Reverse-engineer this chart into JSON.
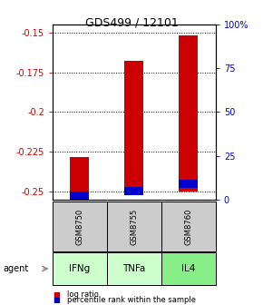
{
  "title": "GDS499 / 12101",
  "samples": [
    "GSM8750",
    "GSM8755",
    "GSM8760"
  ],
  "agents": [
    "IFNg",
    "TNFa",
    "IL4"
  ],
  "log_ratio_baseline": -0.25,
  "log_ratio_values": [
    -0.228,
    -0.168,
    -0.152
  ],
  "percentile_values": [
    2.5,
    5.0,
    9.0
  ],
  "ylim_left": [
    -0.255,
    -0.145
  ],
  "yticks_left": [
    -0.25,
    -0.225,
    -0.2,
    -0.175,
    -0.15
  ],
  "ytick_labels_left": [
    "-0.25",
    "-0.225",
    "-0.2",
    "-0.175",
    "-0.15"
  ],
  "ylim_right": [
    0,
    100
  ],
  "yticks_right": [
    0,
    25,
    50,
    75,
    100
  ],
  "ytick_labels_right": [
    "0",
    "25",
    "50",
    "75",
    "100%"
  ],
  "red_color": "#cc0000",
  "blue_color": "#0000cc",
  "agent_colors": [
    "#ccffcc",
    "#ccffcc",
    "#88ee88"
  ],
  "sample_box_color": "#cccccc",
  "bar_positions": [
    1,
    2,
    3
  ],
  "left_color": "#cc0000",
  "right_color": "#0000cc",
  "legend_items": [
    "log ratio",
    "percentile rank within the sample"
  ]
}
